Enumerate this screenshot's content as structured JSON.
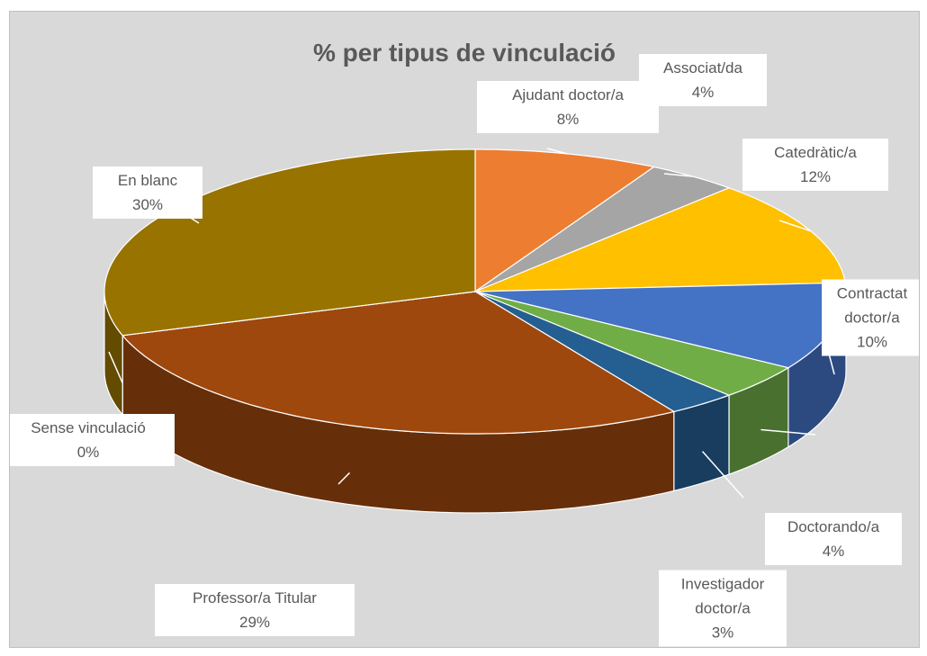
{
  "chart_data": {
    "type": "pie",
    "title": "% per tipus de vinculació",
    "categories": [
      "Ajudant doctor/a",
      "Associat/da",
      "Catedràtic/a",
      "Contractat doctor/a",
      "Doctorando/a",
      "Investigador doctor/a",
      "Professor/a Titular",
      "Sense vinculació",
      "En blanc"
    ],
    "values": [
      8,
      4,
      12,
      10,
      4,
      3,
      29,
      0,
      30
    ],
    "value_labels": [
      "8%",
      "4%",
      "12%",
      "10%",
      "4%",
      "3%",
      "29%",
      "0%",
      "30%"
    ],
    "colors": [
      "#ED7D31",
      "#A5A5A5",
      "#FFC000",
      "#4472C4",
      "#70AD47",
      "#255E91",
      "#9E480E",
      "#636363",
      "#997300"
    ]
  }
}
